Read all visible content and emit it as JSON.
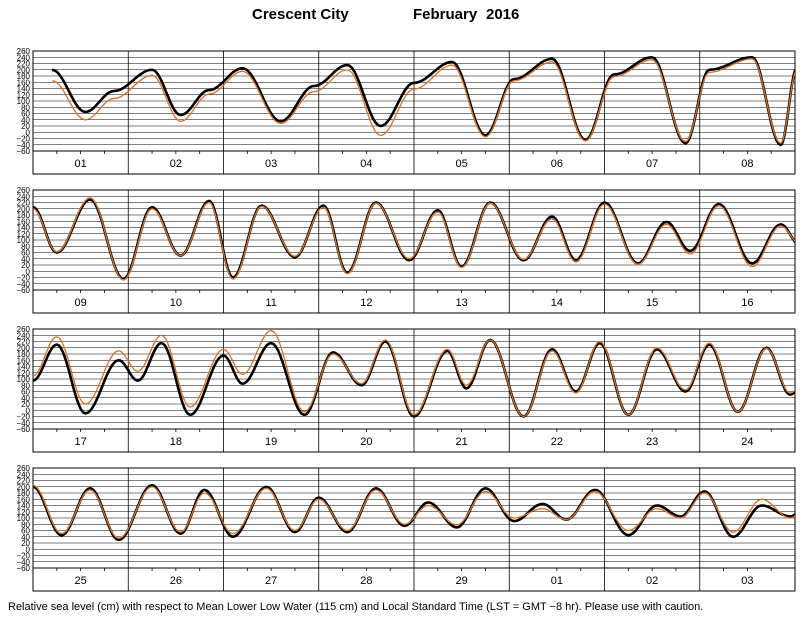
{
  "title": {
    "station": "Crescent City",
    "month": "February",
    "year": "2016"
  },
  "footer": "Relative sea level (cm) with respect to Mean Lower Low Water (115 cm) and Local Standard Time (LST = GMT −8 hr). Please use with caution.",
  "colors": {
    "predicted": "#000000",
    "observed": "#e07020",
    "grid": "#000000"
  },
  "chart_data": {
    "type": "line",
    "ylim": [
      -60,
      260
    ],
    "yticks": [
      -60,
      -40,
      -20,
      0,
      20,
      40,
      60,
      80,
      100,
      120,
      140,
      160,
      180,
      200,
      220,
      240,
      260
    ],
    "ytick_labels": [
      "−60",
      "−40",
      "−20",
      "0",
      "20",
      "40",
      "60",
      "80",
      "100",
      "120",
      "140",
      "160",
      "180",
      "200",
      "220",
      "240",
      "260"
    ],
    "grid": true,
    "series": [
      {
        "key": "predicted",
        "color": "#000000"
      },
      {
        "key": "observed",
        "color": "#e07020"
      }
    ],
    "panels": [
      {
        "days": [
          "01",
          "02",
          "03",
          "04",
          "05",
          "06",
          "07",
          "08"
        ],
        "extremes": [
          {
            "t": 0.2,
            "pred": 200,
            "obs": 165
          },
          {
            "t": 0.55,
            "pred": 65,
            "obs": 40
          },
          {
            "t": 0.85,
            "pred": 132,
            "obs": 108
          },
          {
            "t": 1.25,
            "pred": 200,
            "obs": 182
          },
          {
            "t": 1.55,
            "pred": 55,
            "obs": 35
          },
          {
            "t": 1.85,
            "pred": 135,
            "obs": 122
          },
          {
            "t": 2.2,
            "pred": 205,
            "obs": 195
          },
          {
            "t": 2.6,
            "pred": 35,
            "obs": 28
          },
          {
            "t": 2.95,
            "pred": 148,
            "obs": 130
          },
          {
            "t": 3.3,
            "pred": 215,
            "obs": 200
          },
          {
            "t": 3.65,
            "pred": 20,
            "obs": -10
          },
          {
            "t": 4.0,
            "pred": 158,
            "obs": 138
          },
          {
            "t": 4.4,
            "pred": 225,
            "obs": 215
          },
          {
            "t": 4.75,
            "pred": -10,
            "obs": -15
          },
          {
            "t": 5.05,
            "pred": 170,
            "obs": 165
          },
          {
            "t": 5.45,
            "pred": 235,
            "obs": 225
          },
          {
            "t": 5.8,
            "pred": -25,
            "obs": -28
          },
          {
            "t": 6.1,
            "pred": 185,
            "obs": 178
          },
          {
            "t": 6.5,
            "pred": 240,
            "obs": 232
          },
          {
            "t": 6.85,
            "pred": -35,
            "obs": -30
          },
          {
            "t": 7.1,
            "pred": 200,
            "obs": 192
          },
          {
            "t": 7.55,
            "pred": 240,
            "obs": 235
          },
          {
            "t": 7.85,
            "pred": -40,
            "obs": -35
          },
          {
            "t": 8.02,
            "pred": 205,
            "obs": 198
          }
        ]
      },
      {
        "days": [
          "09",
          "10",
          "11",
          "12",
          "13",
          "14",
          "15",
          "16"
        ],
        "extremes": [
          {
            "t": 0.0,
            "pred": 205,
            "obs": 200
          },
          {
            "t": 0.25,
            "pred": 60,
            "obs": 62
          },
          {
            "t": 0.6,
            "pred": 230,
            "obs": 235
          },
          {
            "t": 0.95,
            "pred": -25,
            "obs": -28
          },
          {
            "t": 1.25,
            "pred": 205,
            "obs": 200
          },
          {
            "t": 1.55,
            "pred": 50,
            "obs": 50
          },
          {
            "t": 1.85,
            "pred": 225,
            "obs": 220
          },
          {
            "t": 2.1,
            "pred": -20,
            "obs": -25
          },
          {
            "t": 2.4,
            "pred": 210,
            "obs": 208
          },
          {
            "t": 2.75,
            "pred": 45,
            "obs": 48
          },
          {
            "t": 3.05,
            "pred": 210,
            "obs": 205
          },
          {
            "t": 3.3,
            "pred": -5,
            "obs": -8
          },
          {
            "t": 3.6,
            "pred": 220,
            "obs": 218
          },
          {
            "t": 3.95,
            "pred": 35,
            "obs": 40
          },
          {
            "t": 4.25,
            "pred": 195,
            "obs": 190
          },
          {
            "t": 4.5,
            "pred": 15,
            "obs": 12
          },
          {
            "t": 4.8,
            "pred": 220,
            "obs": 218
          },
          {
            "t": 5.15,
            "pred": 35,
            "obs": 38
          },
          {
            "t": 5.45,
            "pred": 175,
            "obs": 168
          },
          {
            "t": 5.7,
            "pred": 35,
            "obs": 30
          },
          {
            "t": 6.0,
            "pred": 220,
            "obs": 215
          },
          {
            "t": 6.35,
            "pred": 25,
            "obs": 22
          },
          {
            "t": 6.65,
            "pred": 158,
            "obs": 150
          },
          {
            "t": 6.9,
            "pred": 65,
            "obs": 55
          },
          {
            "t": 7.2,
            "pred": 215,
            "obs": 210
          },
          {
            "t": 7.55,
            "pred": 25,
            "obs": 15
          },
          {
            "t": 7.85,
            "pred": 150,
            "obs": 145
          },
          {
            "t": 8.05,
            "pred": 85,
            "obs": 88
          },
          {
            "t": 8.4,
            "pred": 210,
            "obs": 208
          },
          {
            "t": 8.75,
            "pred": 15,
            "obs": 20
          },
          {
            "t": 9.05,
            "pred": 155,
            "obs": 160
          },
          {
            "t": 9.25,
            "pred": 95,
            "obs": 100
          }
        ]
      },
      {
        "days": [
          "17",
          "18",
          "19",
          "20",
          "21",
          "22",
          "23",
          "24"
        ],
        "extremes": [
          {
            "t": 0.0,
            "pred": 95,
            "obs": 110
          },
          {
            "t": 0.25,
            "pred": 210,
            "obs": 235
          },
          {
            "t": 0.55,
            "pred": -10,
            "obs": 20
          },
          {
            "t": 0.9,
            "pred": 160,
            "obs": 190
          },
          {
            "t": 1.1,
            "pred": 95,
            "obs": 125
          },
          {
            "t": 1.35,
            "pred": 215,
            "obs": 240
          },
          {
            "t": 1.65,
            "pred": -15,
            "obs": 10
          },
          {
            "t": 2.0,
            "pred": 175,
            "obs": 195
          },
          {
            "t": 2.2,
            "pred": 85,
            "obs": 115
          },
          {
            "t": 2.5,
            "pred": 215,
            "obs": 255
          },
          {
            "t": 2.85,
            "pred": -15,
            "obs": -5
          },
          {
            "t": 3.15,
            "pred": 185,
            "obs": 180
          },
          {
            "t": 3.45,
            "pred": 80,
            "obs": 85
          },
          {
            "t": 3.7,
            "pred": 220,
            "obs": 225
          },
          {
            "t": 4.0,
            "pred": -20,
            "obs": -15
          },
          {
            "t": 4.35,
            "pred": 190,
            "obs": 195
          },
          {
            "t": 4.55,
            "pred": 70,
            "obs": 80
          },
          {
            "t": 4.8,
            "pred": 225,
            "obs": 225
          },
          {
            "t": 5.15,
            "pred": -20,
            "obs": -20
          },
          {
            "t": 5.45,
            "pred": 195,
            "obs": 190
          },
          {
            "t": 5.7,
            "pred": 60,
            "obs": 55
          },
          {
            "t": 5.95,
            "pred": 215,
            "obs": 220
          },
          {
            "t": 6.25,
            "pred": -15,
            "obs": -15
          },
          {
            "t": 6.55,
            "pred": 195,
            "obs": 200
          },
          {
            "t": 6.85,
            "pred": 60,
            "obs": 65
          },
          {
            "t": 7.1,
            "pred": 210,
            "obs": 215
          },
          {
            "t": 7.4,
            "pred": -5,
            "obs": -5
          },
          {
            "t": 7.7,
            "pred": 200,
            "obs": 198
          },
          {
            "t": 7.95,
            "pred": 50,
            "obs": 55
          },
          {
            "t": 8.25,
            "pred": 205,
            "obs": 200
          },
          {
            "t": 8.55,
            "pred": -5,
            "obs": 0
          },
          {
            "t": 8.85,
            "pred": 185,
            "obs": 175
          }
        ]
      },
      {
        "days": [
          "25",
          "26",
          "27",
          "28",
          "29",
          "01",
          "02",
          "03"
        ],
        "extremes": [
          {
            "t": 0.0,
            "pred": 200,
            "obs": 205
          },
          {
            "t": 0.3,
            "pred": 45,
            "obs": 50
          },
          {
            "t": 0.6,
            "pred": 195,
            "obs": 190
          },
          {
            "t": 0.9,
            "pred": 30,
            "obs": 35
          },
          {
            "t": 1.25,
            "pred": 205,
            "obs": 200
          },
          {
            "t": 1.55,
            "pred": 50,
            "obs": 55
          },
          {
            "t": 1.8,
            "pred": 190,
            "obs": 180
          },
          {
            "t": 2.1,
            "pred": 40,
            "obs": 50
          },
          {
            "t": 2.45,
            "pred": 200,
            "obs": 195
          },
          {
            "t": 2.75,
            "pred": 55,
            "obs": 60
          },
          {
            "t": 3.0,
            "pred": 165,
            "obs": 160
          },
          {
            "t": 3.3,
            "pred": 55,
            "obs": 60
          },
          {
            "t": 3.6,
            "pred": 195,
            "obs": 190
          },
          {
            "t": 3.9,
            "pred": 75,
            "obs": 80
          },
          {
            "t": 4.15,
            "pred": 150,
            "obs": 140
          },
          {
            "t": 4.45,
            "pred": 70,
            "obs": 78
          },
          {
            "t": 4.75,
            "pred": 195,
            "obs": 185
          },
          {
            "t": 5.05,
            "pred": 90,
            "obs": 100
          },
          {
            "t": 5.35,
            "pred": 145,
            "obs": 130
          },
          {
            "t": 5.6,
            "pred": 95,
            "obs": 95
          },
          {
            "t": 5.9,
            "pred": 190,
            "obs": 185
          },
          {
            "t": 6.25,
            "pred": 45,
            "obs": 60
          },
          {
            "t": 6.55,
            "pred": 140,
            "obs": 130
          },
          {
            "t": 6.8,
            "pred": 105,
            "obs": 100
          },
          {
            "t": 7.05,
            "pred": 185,
            "obs": 180
          },
          {
            "t": 7.35,
            "pred": 40,
            "obs": 55
          },
          {
            "t": 7.65,
            "pred": 140,
            "obs": 160
          },
          {
            "t": 7.95,
            "pred": 105,
            "obs": 100
          },
          {
            "t": 8.25,
            "pred": 195,
            "obs": 200
          },
          {
            "t": 8.55,
            "pred": 30,
            "obs": 40
          },
          {
            "t": 8.9,
            "pred": 150,
            "obs": 155
          },
          {
            "t": 9.15,
            "pred": 105,
            "obs": 110
          }
        ]
      }
    ]
  }
}
